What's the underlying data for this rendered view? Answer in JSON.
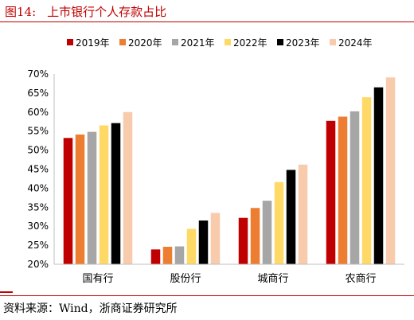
{
  "figure": {
    "number": "图14:",
    "title": "上市银行个人存款占比",
    "source": "资料来源：Wind，浙商证券研究所"
  },
  "chart_data": {
    "type": "bar",
    "categories": [
      "国有行",
      "股份行",
      "城商行",
      "农商行"
    ],
    "series": [
      {
        "name": "2019年",
        "color": "#c00000",
        "values": [
          53.2,
          23.9,
          32.2,
          57.7
        ]
      },
      {
        "name": "2020年",
        "color": "#ed7d31",
        "values": [
          54.1,
          24.6,
          34.8,
          58.8
        ]
      },
      {
        "name": "2021年",
        "color": "#a6a6a6",
        "values": [
          54.8,
          24.7,
          36.7,
          60.2
        ]
      },
      {
        "name": "2022年",
        "color": "#ffd966",
        "values": [
          56.5,
          29.3,
          41.6,
          63.9
        ]
      },
      {
        "name": "2023年",
        "color": "#000000",
        "values": [
          57.1,
          31.5,
          44.8,
          66.5
        ]
      },
      {
        "name": "2024年",
        "color": "#f8cbad",
        "values": [
          60.0,
          33.5,
          46.2,
          69.1
        ]
      }
    ],
    "y_ticks": [
      "20%",
      "25%",
      "30%",
      "35%",
      "40%",
      "45%",
      "50%",
      "55%",
      "60%",
      "65%",
      "70%"
    ],
    "ylim": [
      20,
      70
    ],
    "grid": false,
    "legend_position": "top"
  }
}
